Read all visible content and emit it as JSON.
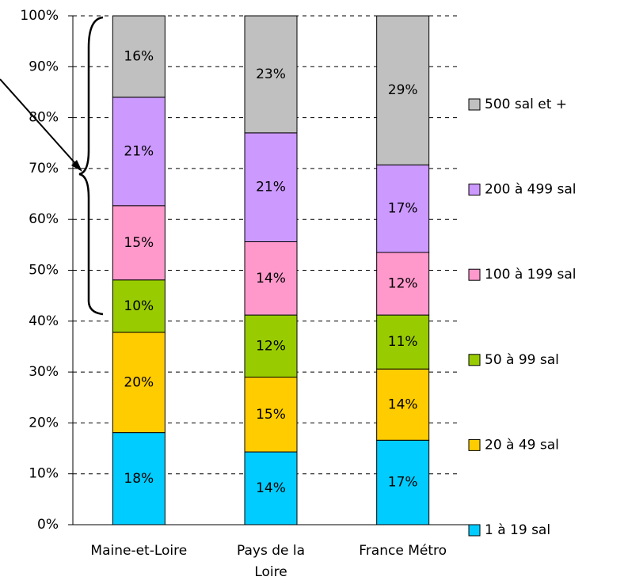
{
  "chart_data": {
    "type": "stacked_bar",
    "categories": [
      "Maine-et-Loire",
      "Pays de la Loire",
      "France Métro"
    ],
    "series": [
      {
        "name": "1 à 19 sal",
        "color": "#00ccff",
        "values": [
          18.1,
          14.3,
          16.6
        ],
        "value_labels": [
          "18%",
          "14%",
          "17%"
        ]
      },
      {
        "name": "20 à 49 sal",
        "color": "#ffcc00",
        "values": [
          19.7,
          14.7,
          14.0
        ],
        "value_labels": [
          "20%",
          "15%",
          "14%"
        ]
      },
      {
        "name": "50 à 99 sal",
        "color": "#99cc00",
        "values": [
          10.3,
          12.2,
          10.6
        ],
        "value_labels": [
          "10%",
          "12%",
          "11%"
        ]
      },
      {
        "name": "100 à 199 sal",
        "color": "#ff99cc",
        "values": [
          14.6,
          14.4,
          12.3
        ],
        "value_labels": [
          "15%",
          "14%",
          "12%"
        ]
      },
      {
        "name": "200 à 499 sal",
        "color": "#cc99ff",
        "values": [
          21.3,
          21.4,
          17.2
        ],
        "value_labels": [
          "21%",
          "21%",
          "17%"
        ]
      },
      {
        "name": "500 sal et +",
        "color": "#c0c0c0",
        "values": [
          16.0,
          23.0,
          29.3
        ],
        "value_labels": [
          "16%",
          "23%",
          "29%"
        ]
      }
    ],
    "ylim": [
      0,
      100
    ],
    "yticks": [
      {
        "value": 0,
        "label": "0%"
      },
      {
        "value": 10,
        "label": "10%"
      },
      {
        "value": 20,
        "label": "20%"
      },
      {
        "value": 30,
        "label": "30%"
      },
      {
        "value": 40,
        "label": "40%"
      },
      {
        "value": 50,
        "label": "50%"
      },
      {
        "value": 60,
        "label": "60%"
      },
      {
        "value": 70,
        "label": "70%"
      },
      {
        "value": 80,
        "label": "80%"
      },
      {
        "value": 90,
        "label": "90%"
      },
      {
        "value": 100,
        "label": "100%"
      }
    ],
    "grid": true,
    "legend": "right"
  }
}
